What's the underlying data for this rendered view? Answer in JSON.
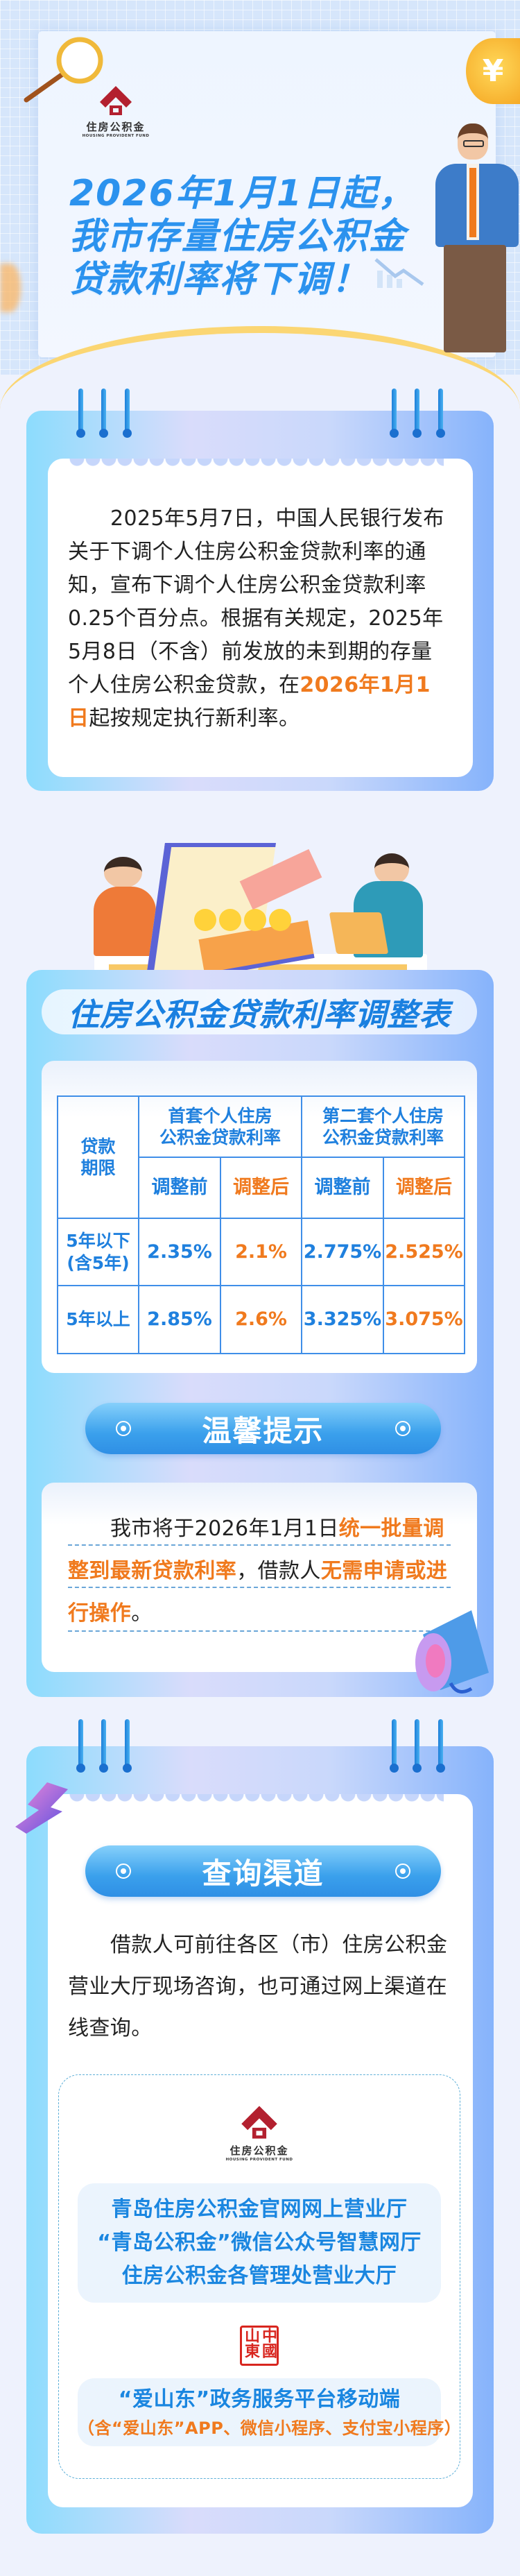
{
  "logo": {
    "name": "住房公积金",
    "english": "HOUSING PROVIDENT FUND"
  },
  "hero": {
    "title_lines": [
      "2026年1月1日起，",
      "我市存量住房公积金",
      "贷款利率将下调！"
    ]
  },
  "intro": {
    "text_before": "2025年5月7日，中国人民银行发布关于下调个人住房公积金贷款利率的通知，宣布下调个人住房公积金贷款利率0.25个百分点。根据有关规定，2025年5月8日（不含）前发放的未到期的存量个人住房公积金贷款，在",
    "highlight": "2026年1月1日",
    "text_after": "起按规定执行新利率。"
  },
  "rate_table": {
    "title": "住房公积金贷款利率调整表",
    "term_header": "贷款\n期限",
    "group_headers": [
      "首套个人住房\n公积金贷款利率",
      "第二套个人住房\n公积金贷款利率"
    ],
    "sub_headers": [
      "调整前",
      "调整后",
      "调整前",
      "调整后"
    ],
    "rows": [
      {
        "term": "5年以下\n(含5年)",
        "values": [
          "2.35%",
          "2.1%",
          "2.775%",
          "2.525%"
        ]
      },
      {
        "term": "5年以上",
        "values": [
          "2.85%",
          "2.6%",
          "3.325%",
          "3.075%"
        ]
      }
    ],
    "colors": {
      "before": "#1f80de",
      "after": "#f07a1e",
      "border": "#3f8ee8"
    }
  },
  "tip": {
    "title": "温馨提示",
    "parts": [
      {
        "text": "我市将于2026年1月1日",
        "highlight": false
      },
      {
        "text": "统一批量调整到最新贷款利率",
        "highlight": true
      },
      {
        "text": "，借款人",
        "highlight": false
      },
      {
        "text": "无需申请或进行操作",
        "highlight": true
      },
      {
        "text": "。",
        "highlight": false
      }
    ]
  },
  "query": {
    "title": "查询渠道",
    "text": "借款人可前往各区（市）住房公积金营业大厅现场咨询，也可通过网上渠道在线查询。",
    "channels": [
      "青岛住房公积金官网网上营业厅",
      "“青岛公积金”微信公众号智慧网厅",
      "住房公积金各管理处营业大厅"
    ],
    "seal": "中國山東",
    "app_channel": "“爱山东”政务服务平台移动端",
    "app_note": "（含“爱山东”APP、微信小程序、支付宝小程序）"
  },
  "colors": {
    "primary": "#2b92ee",
    "highlight": "#f07a1e",
    "background": "#eef2fd",
    "logo_red": "#b3202f"
  }
}
